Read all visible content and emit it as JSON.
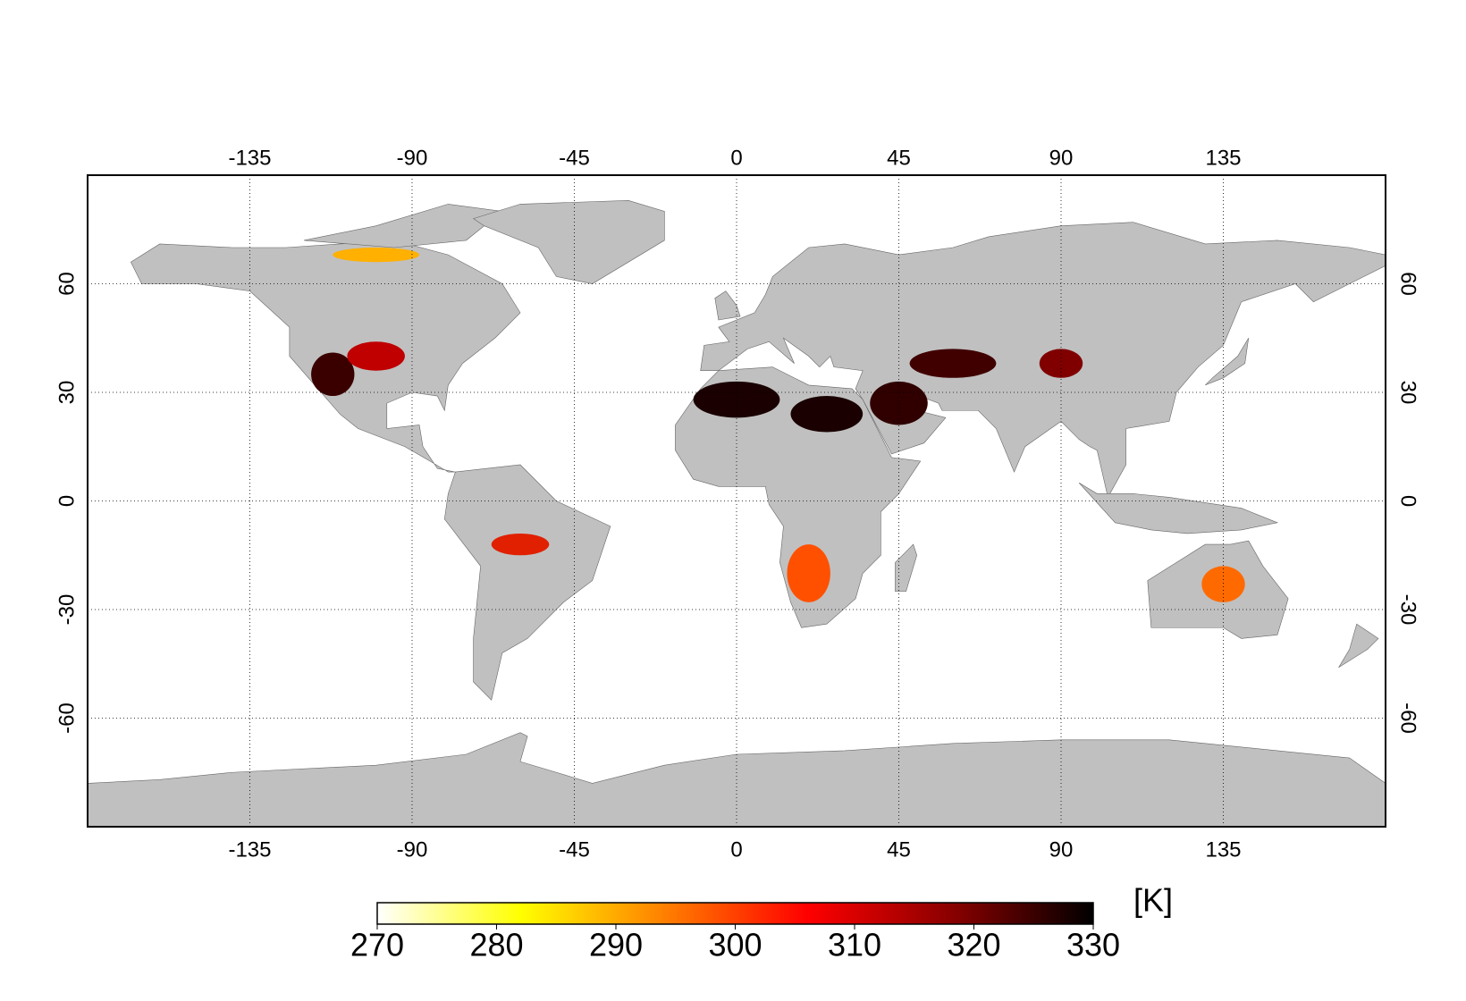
{
  "map": {
    "xlim": [
      -180,
      180
    ],
    "ylim": [
      -90,
      90
    ],
    "xticks": [
      -135,
      -90,
      -45,
      0,
      45,
      90,
      135
    ],
    "yticks": [
      -60,
      -30,
      0,
      30,
      60
    ],
    "grid": true,
    "land_color": "#c0c0c0",
    "colorbar": {
      "lim": [
        270,
        330
      ],
      "ticks": [
        270,
        280,
        290,
        300,
        310,
        320,
        330
      ],
      "unit": "[K]",
      "colors": [
        "#ffffff",
        "#ffff00",
        "#ff8000",
        "#ff0000",
        "#8b0000",
        "#000000"
      ]
    }
  }
}
